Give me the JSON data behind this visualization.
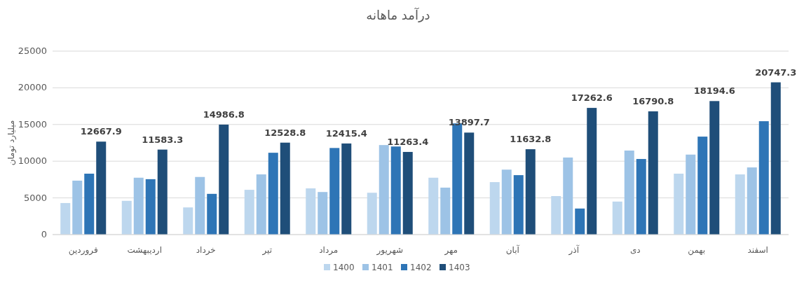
{
  "chart_data": {
    "type": "bar",
    "title": "درآمد ماهانه",
    "ylabel": "میلیارد تومان",
    "categories": [
      "فروردین",
      "اردیبهشت",
      "خرداد",
      "تیر",
      "مرداد",
      "شهریور",
      "مهر",
      "آبان",
      "آذر",
      "دی",
      "بهمن",
      "اسفند"
    ],
    "series": [
      {
        "name": "1400",
        "color": "#bdd7ee",
        "values": [
          4300,
          4600,
          3700,
          6100,
          6300,
          5700,
          7750,
          7150,
          5250,
          4500,
          8300,
          8200
        ]
      },
      {
        "name": "1401",
        "color": "#9dc3e6",
        "values": [
          7350,
          7750,
          7850,
          8200,
          5800,
          12200,
          6400,
          8850,
          10500,
          11450,
          10900,
          9150
        ]
      },
      {
        "name": "1402",
        "color": "#2e75b6",
        "values": [
          8300,
          7550,
          5550,
          11150,
          11800,
          12000,
          15150,
          8100,
          3550,
          10300,
          13350,
          15450
        ]
      },
      {
        "name": "1403",
        "color": "#1f4e79",
        "values": [
          12667.9,
          11583.3,
          14986.8,
          12528.8,
          12415.4,
          11263.4,
          13897.7,
          11632.8,
          17262.6,
          16790.8,
          18194.6,
          20747.3
        ],
        "value_labels": [
          "12667.9",
          "11583.3",
          "14986.8",
          "12528.8",
          "12415.4",
          "11263.4",
          "13897.7",
          "11632.8",
          "17262.6",
          "16790.8",
          "18194.6",
          "20747.3"
        ]
      }
    ],
    "ylim": [
      0,
      25000
    ],
    "yticks": [
      0,
      5000,
      10000,
      15000,
      20000,
      25000
    ],
    "grid": "y",
    "legend": "bottom"
  }
}
